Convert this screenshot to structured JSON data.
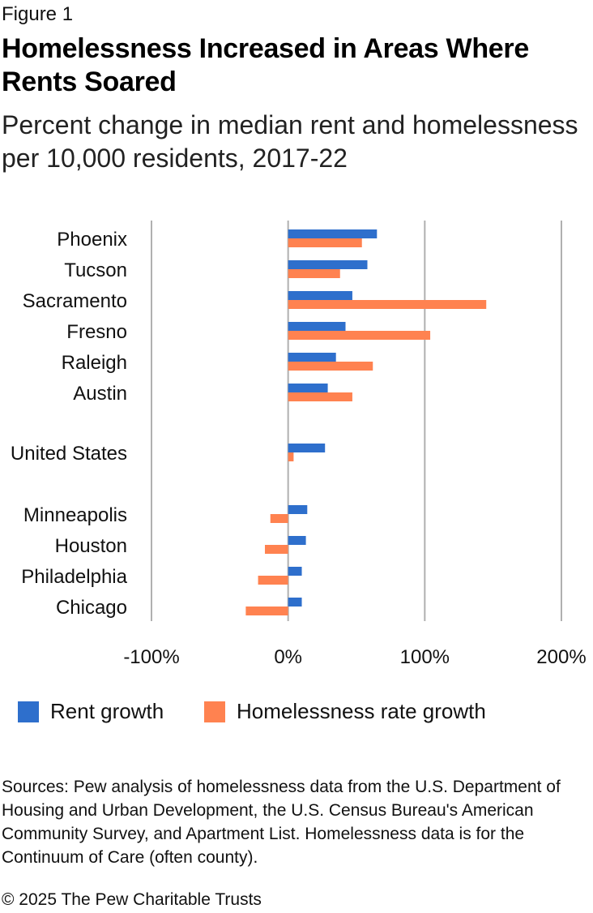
{
  "figure_label": "Figure 1",
  "title": "Homelessness Increased in Areas Where Rents Soared",
  "subtitle": "Percent change in median rent and homelessness per 10,000 residents, 2017-22",
  "chart_data": {
    "type": "bar",
    "orientation": "horizontal",
    "categories": [
      "Phoenix",
      "Tucson",
      "Sacramento",
      "Fresno",
      "Raleigh",
      "Austin",
      "United States",
      "Minneapolis",
      "Houston",
      "Philadelphia",
      "Chicago"
    ],
    "series": [
      {
        "name": "Rent growth",
        "color": "#2E6FCC",
        "values": [
          65,
          58,
          47,
          42,
          35,
          29,
          27,
          14,
          13,
          10,
          10
        ]
      },
      {
        "name": "Homelessness rate growth",
        "color": "#FF8250",
        "values": [
          54,
          38,
          145,
          104,
          62,
          47,
          4,
          -13,
          -17,
          -22,
          -31
        ]
      }
    ],
    "x_ticks": [
      "-100%",
      "0%",
      "100%",
      "200%"
    ],
    "x_tick_values": [
      -100,
      0,
      100,
      200
    ],
    "xlim": [
      -100,
      200
    ],
    "grid": "vertical",
    "legend_position": "bottom"
  },
  "legend": {
    "rent": "Rent growth",
    "homeless": "Homelessness rate growth"
  },
  "sources": "Sources: Pew analysis of homelessness data from the U.S. Department of Housing and Urban Development, the U.S. Census Bureau's American Community Survey, and Apartment List. Homelessness data is for the Continuum of Care (often county).",
  "copyright": "© 2025 The Pew Charitable Trusts"
}
